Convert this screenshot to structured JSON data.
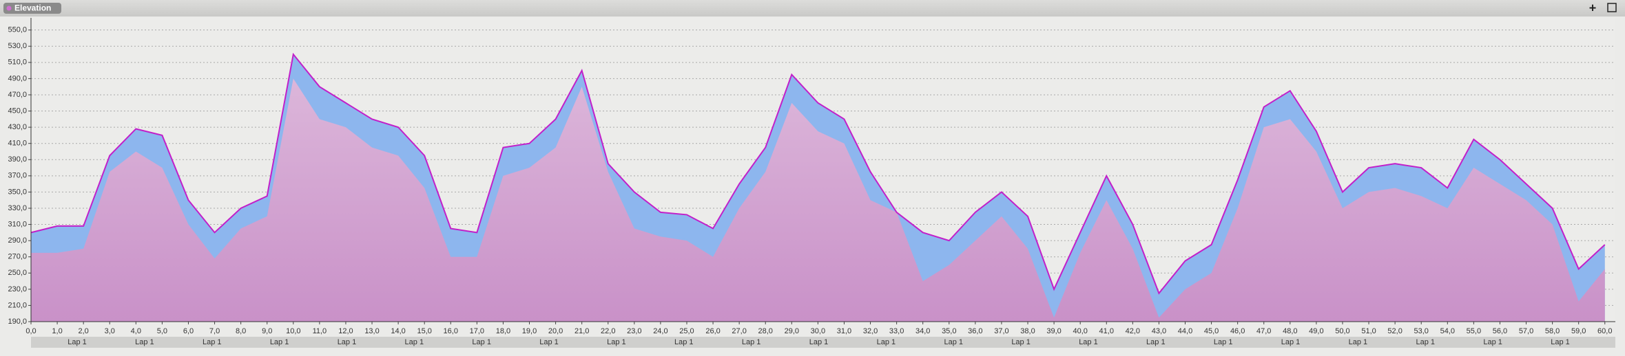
{
  "header": {
    "title": "Elevation",
    "add_button": "+"
  },
  "chart_data": {
    "type": "area",
    "xlim": [
      0,
      60.4
    ],
    "ylim": [
      190,
      565
    ],
    "x": [
      0,
      1,
      2,
      3,
      4,
      5,
      6,
      7,
      8,
      9,
      10,
      11,
      12,
      13,
      14,
      15,
      16,
      17,
      18,
      19,
      20,
      21,
      22,
      23,
      24,
      25,
      26,
      27,
      28,
      29,
      30,
      31,
      32,
      33,
      34,
      35,
      36,
      37,
      38,
      39,
      40,
      41,
      42,
      43,
      44,
      45,
      46,
      47,
      48,
      49,
      50,
      51,
      52,
      53,
      54,
      55,
      56,
      57,
      58,
      59,
      60
    ],
    "series": [
      {
        "color": "#8db6ee",
        "line_color": "#c21fc9",
        "values": [
          300,
          308,
          308,
          395,
          428,
          420,
          340,
          300,
          330,
          345,
          520,
          480,
          460,
          440,
          430,
          395,
          305,
          300,
          405,
          410,
          440,
          500,
          385,
          350,
          325,
          322,
          305,
          360,
          405,
          495,
          460,
          440,
          375,
          325,
          300,
          290,
          325,
          350,
          320,
          230,
          300,
          370,
          310,
          225,
          265,
          285,
          365,
          455,
          475,
          425,
          350,
          380,
          385,
          380,
          355,
          415,
          390,
          360,
          330,
          255,
          285
        ]
      },
      {
        "color": "#dcb6da",
        "values": [
          275,
          275,
          280,
          375,
          400,
          380,
          310,
          268,
          305,
          320,
          490,
          440,
          430,
          405,
          395,
          355,
          270,
          270,
          370,
          380,
          405,
          480,
          375,
          305,
          295,
          290,
          270,
          330,
          375,
          460,
          425,
          410,
          340,
          325,
          240,
          260,
          290,
          320,
          280,
          195,
          275,
          340,
          280,
          195,
          230,
          250,
          330,
          430,
          440,
          400,
          330,
          350,
          355,
          345,
          330,
          380,
          360,
          340,
          310,
          215,
          255
        ]
      }
    ],
    "grid": true,
    "yticks": [
      {
        "value": 190,
        "label": "190,0"
      },
      {
        "value": 210,
        "label": "210,0"
      },
      {
        "value": 230,
        "label": "230,0"
      },
      {
        "value": 250,
        "label": "250,0"
      },
      {
        "value": 270,
        "label": "270,0"
      },
      {
        "value": 290,
        "label": "290,0"
      },
      {
        "value": 310,
        "label": "310,0"
      },
      {
        "value": 330,
        "label": "330,0"
      },
      {
        "value": 350,
        "label": "350,0"
      },
      {
        "value": 370,
        "label": "370,0"
      },
      {
        "value": 390,
        "label": "390,0"
      },
      {
        "value": 410,
        "label": "410,0"
      },
      {
        "value": 430,
        "label": "430,0"
      },
      {
        "value": 450,
        "label": "450,0"
      },
      {
        "value": 470,
        "label": "470,0"
      },
      {
        "value": 490,
        "label": "490,0"
      },
      {
        "value": 510,
        "label": "510,0"
      },
      {
        "value": 530,
        "label": "530,0"
      },
      {
        "value": 550,
        "label": "550,0"
      }
    ],
    "xticks": [
      {
        "value": 0,
        "label": "0,0"
      },
      {
        "value": 1,
        "label": "1,0"
      },
      {
        "value": 2,
        "label": "2,0"
      },
      {
        "value": 3,
        "label": "3,0"
      },
      {
        "value": 4,
        "label": "4,0"
      },
      {
        "value": 5,
        "label": "5,0"
      },
      {
        "value": 6,
        "label": "6,0"
      },
      {
        "value": 7,
        "label": "7,0"
      },
      {
        "value": 8,
        "label": "8,0"
      },
      {
        "value": 9,
        "label": "9,0"
      },
      {
        "value": 10,
        "label": "10,0"
      },
      {
        "value": 11,
        "label": "11,0"
      },
      {
        "value": 12,
        "label": "12,0"
      },
      {
        "value": 13,
        "label": "13,0"
      },
      {
        "value": 14,
        "label": "14,0"
      },
      {
        "value": 15,
        "label": "15,0"
      },
      {
        "value": 16,
        "label": "16,0"
      },
      {
        "value": 17,
        "label": "17,0"
      },
      {
        "value": 18,
        "label": "18,0"
      },
      {
        "value": 19,
        "label": "19,0"
      },
      {
        "value": 20,
        "label": "20,0"
      },
      {
        "value": 21,
        "label": "21,0"
      },
      {
        "value": 22,
        "label": "22,0"
      },
      {
        "value": 23,
        "label": "23,0"
      },
      {
        "value": 24,
        "label": "24,0"
      },
      {
        "value": 25,
        "label": "25,0"
      },
      {
        "value": 26,
        "label": "26,0"
      },
      {
        "value": 27,
        "label": "27,0"
      },
      {
        "value": 28,
        "label": "28,0"
      },
      {
        "value": 29,
        "label": "29,0"
      },
      {
        "value": 30,
        "label": "30,0"
      },
      {
        "value": 31,
        "label": "31,0"
      },
      {
        "value": 32,
        "label": "32,0"
      },
      {
        "value": 33,
        "label": "33,0"
      },
      {
        "value": 34,
        "label": "34,0"
      },
      {
        "value": 35,
        "label": "35,0"
      },
      {
        "value": 36,
        "label": "36,0"
      },
      {
        "value": 37,
        "label": "37,0"
      },
      {
        "value": 38,
        "label": "38,0"
      },
      {
        "value": 39,
        "label": "39,0"
      },
      {
        "value": 40,
        "label": "40,0"
      },
      {
        "value": 41,
        "label": "41,0"
      },
      {
        "value": 42,
        "label": "42,0"
      },
      {
        "value": 43,
        "label": "43,0"
      },
      {
        "value": 44,
        "label": "44,0"
      },
      {
        "value": 45,
        "label": "45,0"
      },
      {
        "value": 46,
        "label": "46,0"
      },
      {
        "value": 47,
        "label": "47,0"
      },
      {
        "value": 48,
        "label": "48,0"
      },
      {
        "value": 49,
        "label": "49,0"
      },
      {
        "value": 50,
        "label": "50,0"
      },
      {
        "value": 51,
        "label": "51,0"
      },
      {
        "value": 52,
        "label": "52,0"
      },
      {
        "value": 53,
        "label": "53,0"
      },
      {
        "value": 54,
        "label": "54,0"
      },
      {
        "value": 55,
        "label": "55,0"
      },
      {
        "value": 56,
        "label": "56,0"
      },
      {
        "value": 57,
        "label": "57,0"
      },
      {
        "value": 58,
        "label": "58,0"
      },
      {
        "value": 59,
        "label": "59,0"
      },
      {
        "value": 60,
        "label": "60,0"
      }
    ],
    "lap_labels": [
      "Lap 1",
      "Lap 1",
      "Lap 1",
      "Lap 1",
      "Lap 1",
      "Lap 1",
      "Lap 1",
      "Lap 1",
      "Lap 1",
      "Lap 1",
      "Lap 1",
      "Lap 1",
      "Lap 1",
      "Lap 1",
      "Lap 1",
      "Lap 1",
      "Lap 1",
      "Lap 1",
      "Lap 1",
      "Lap 1",
      "Lap 1",
      "Lap 1",
      "Lap 1"
    ]
  }
}
